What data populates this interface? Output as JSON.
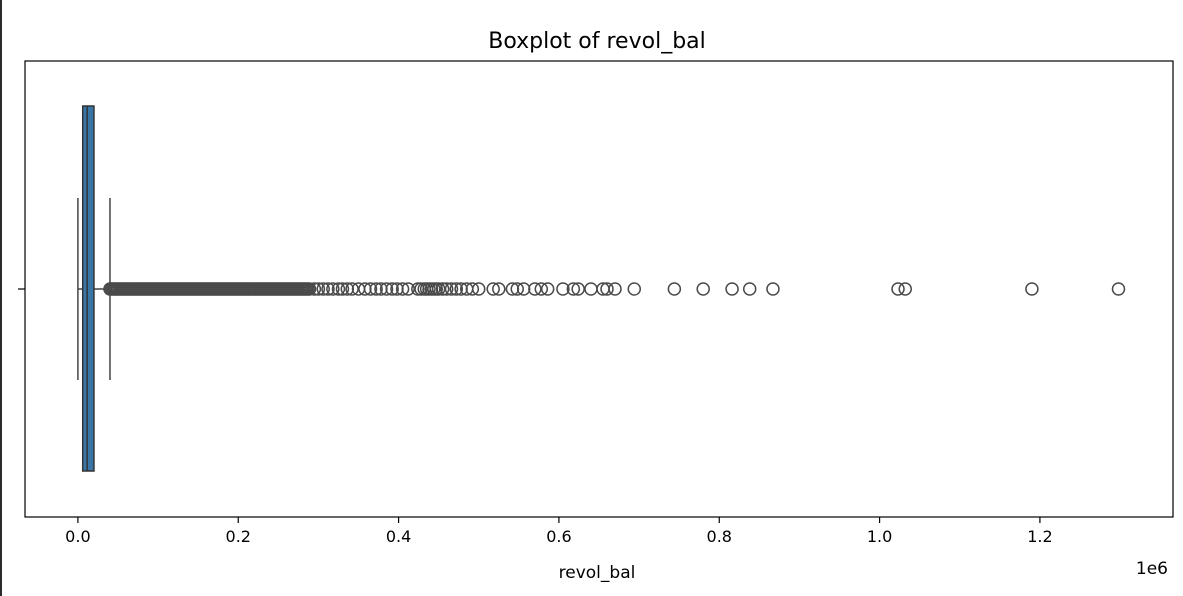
{
  "chart_data": {
    "type": "boxplot",
    "title": "Boxplot of revol_bal",
    "xlabel": "revol_bal",
    "ylabel": "",
    "offset_label": "1e6",
    "xlim": [
      -66000,
      1366000
    ],
    "xticks": [
      0.0,
      0.2,
      0.4,
      0.6,
      0.8,
      1.0,
      1.2
    ],
    "x_tick_labels": [
      "0.0",
      "0.2",
      "0.4",
      "0.6",
      "0.8",
      "1.0",
      "1.2"
    ],
    "tick_scale": 1000000,
    "orientation": "horizontal",
    "grid": false,
    "box": {
      "whisker_low": 0,
      "q1": 6000,
      "median": 11500,
      "q3": 20000,
      "whisker_high": 40000,
      "color": "#3a75a8"
    },
    "outlier_dense_range": [
      40000,
      290000
    ],
    "outliers": [
      295000,
      300000,
      306000,
      312000,
      318000,
      325000,
      330000,
      336000,
      342000,
      350000,
      358000,
      365000,
      372000,
      378000,
      385000,
      392000,
      398000,
      405000,
      412000,
      424000,
      428000,
      432000,
      435000,
      438000,
      441000,
      444000,
      447000,
      450000,
      455000,
      460000,
      466000,
      472000,
      478000,
      485000,
      492000,
      500000,
      518000,
      525000,
      542000,
      548000,
      556000,
      570000,
      578000,
      586000,
      605000,
      618000,
      624000,
      640000,
      655000,
      660000,
      670000,
      694000,
      744000,
      780000,
      816000,
      838000,
      867000,
      1023000,
      1032000,
      1190000,
      1298000
    ]
  }
}
